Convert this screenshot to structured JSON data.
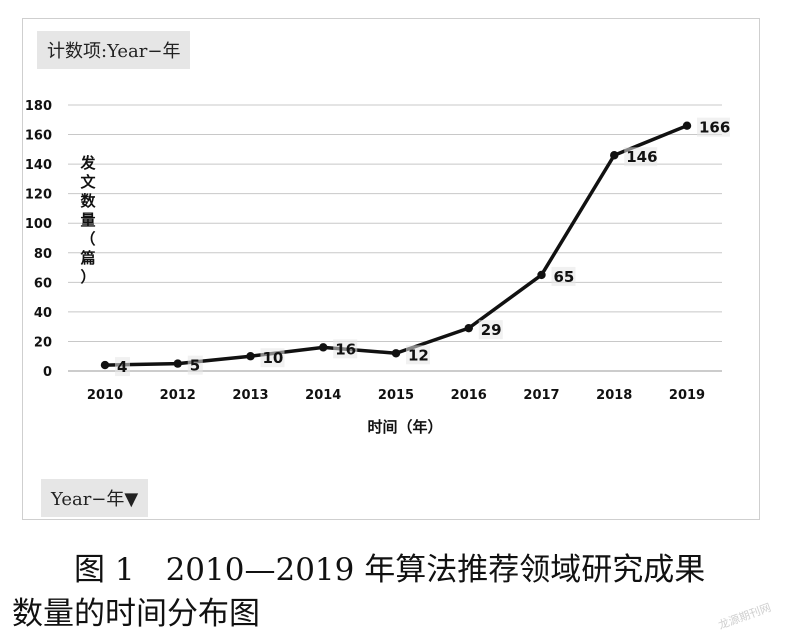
{
  "chart_data": {
    "type": "line",
    "field_button_top": "计数项:Year−年",
    "field_button_bottom": "Year−年▼",
    "categories": [
      "2010",
      "2012",
      "2013",
      "2014",
      "2015",
      "2016",
      "2017",
      "2018",
      "2019"
    ],
    "series": [
      {
        "values": [
          4,
          5,
          10,
          16,
          12,
          29,
          65,
          146,
          166
        ]
      }
    ],
    "data_labels": [
      "4",
      "5",
      "10",
      "16",
      "12",
      "29",
      "65",
      "146",
      "166"
    ],
    "yticks": [
      "0",
      "20",
      "40",
      "60",
      "80",
      "100",
      "120",
      "140",
      "160",
      "180"
    ],
    "ylim": [
      0,
      180
    ],
    "ylabel": "发文数量（篇）",
    "xlabel": "时间（年）",
    "grid": true,
    "colors": {
      "line": "#111111",
      "grid": "#c8c8c8",
      "label_box": "#e6e6e6"
    }
  },
  "caption": {
    "line1": "图 1　2010—2019 年算法推荐领域研究成果",
    "line2": "数量的时间分布图"
  },
  "watermark": "龙源期刊网"
}
